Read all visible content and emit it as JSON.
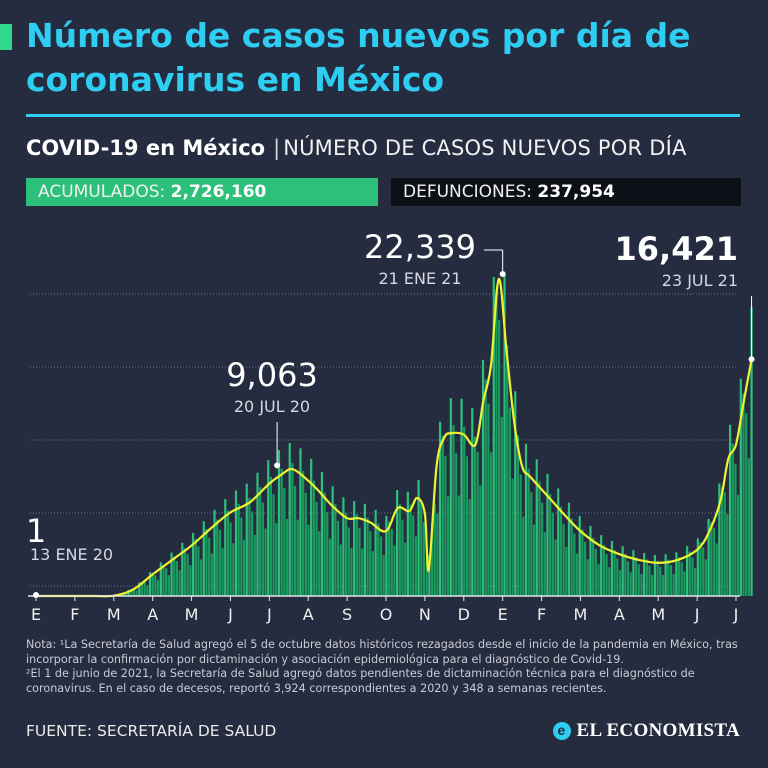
{
  "colors": {
    "accent": "#2fd98a",
    "title": "#2ecdf2",
    "bar": "#1a9b5e",
    "bar_light": "#2cc07a",
    "line": "#eef530",
    "grid": "#6a7187",
    "background": "#262c40"
  },
  "header": {
    "title": "Número de casos nuevos por día de coronavirus en México",
    "subtitle_bold": "COVID-19 en México",
    "subtitle_sep": "|",
    "subtitle_rest": "NÚMERO DE CASOS NUEVOS POR DÍA"
  },
  "stats": {
    "acumulados_label": "ACUMULADOS:",
    "acumulados_value": "2,726,160",
    "defunciones_label": "DEFUNCIONES:",
    "defunciones_value": "237,954"
  },
  "chart_data": {
    "type": "bar",
    "title": "Número de casos nuevos por día",
    "xlabel": "",
    "ylabel": "",
    "ylim": [
      0,
      22339
    ],
    "grid": true,
    "legend": "none",
    "month_ticks": [
      "E",
      "F",
      "M",
      "A",
      "M",
      "J",
      "J",
      "A",
      "S",
      "O",
      "N",
      "D",
      "E",
      "F",
      "M",
      "A",
      "M",
      "J",
      "J"
    ],
    "series": [
      {
        "name": "Casos nuevos por día",
        "kind": "bar",
        "date_range": [
          "13 ENE 20",
          "23 JUL 21"
        ]
      },
      {
        "name": "Promedio móvil",
        "kind": "line",
        "x_months": [
          0,
          0.5,
          1,
          1.5,
          2,
          2.5,
          3,
          3.5,
          4,
          4.5,
          5,
          5.5,
          6,
          6.3,
          6.6,
          7,
          7.3,
          7.6,
          8,
          8.3,
          8.6,
          9,
          9.3,
          9.6,
          9.8,
          10,
          10.1,
          10.3,
          10.5,
          10.7,
          11,
          11.3,
          11.5,
          11.7,
          11.9,
          12.1,
          12.3,
          12.5,
          12.7,
          13,
          13.3,
          13.6,
          14,
          14.5,
          15,
          15.5,
          16,
          16.5,
          17,
          17.3,
          17.6,
          17.8,
          18,
          18.2,
          18.4
        ],
        "values": [
          1,
          1,
          1,
          1,
          20,
          450,
          1500,
          2500,
          3500,
          4700,
          5800,
          6500,
          7800,
          8400,
          8800,
          8000,
          7200,
          6300,
          5400,
          5400,
          5100,
          4500,
          6100,
          5900,
          6800,
          5700,
          1800,
          9000,
          11000,
          11300,
          11200,
          10500,
          13500,
          16000,
          22000,
          17000,
          12000,
          9000,
          8300,
          7400,
          6500,
          5600,
          4500,
          3500,
          2900,
          2500,
          2300,
          2500,
          3200,
          4400,
          6600,
          9500,
          10500,
          13500,
          16421
        ]
      }
    ],
    "annotations": [
      {
        "value": "1",
        "date": "13 ENE 20"
      },
      {
        "value": "9,063",
        "date": "20 JUL 20"
      },
      {
        "value": "22,339",
        "date": "21 ENE 21"
      },
      {
        "value": "16,421",
        "date": "23 JUL 21"
      }
    ]
  },
  "notes": {
    "note1": "Nota: ¹La Secretaría de Salud agregó el 5 de octubre datos históricos rezagados desde el inicio de la pandemia en México, tras incorporar la confirmación por dictaminación y asociación epidemiológica para el diagnóstico de Covid-19.",
    "note2": "²El 1 de junio de 2021, la Secretaría de Salud agregó datos pendientes de dictaminación técnica para el diagnóstico de coronavirus. En el caso de decesos, reportó 3,924 correspondientes a 2020 y 348 a semanas recientes."
  },
  "footer": {
    "source": "FUENTE: SECRETARÍA DE SALUD",
    "brand_mark": "e",
    "brand": "EL ECONOMISTA"
  }
}
